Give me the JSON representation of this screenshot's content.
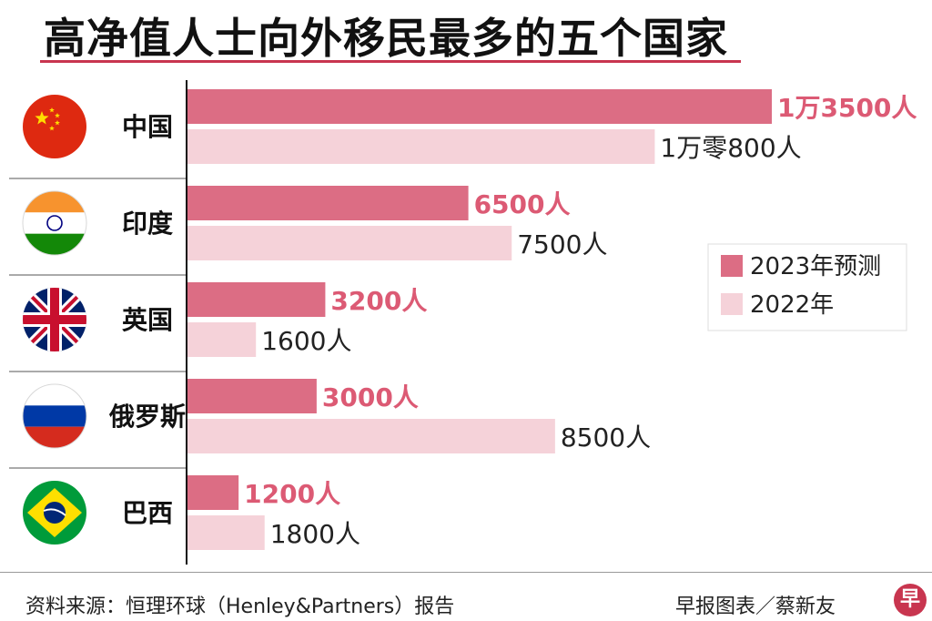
{
  "title": "高净值人士向外移民最多的五个国家",
  "footer": {
    "source": "资料来源：恒理环球（Henley&Partners）报告",
    "credit": "早报图表／蔡新友",
    "logo_text": "早"
  },
  "colors": {
    "series_2023": "#dc6d84",
    "series_2022": "#f5d2d9",
    "label_2023": "#dc5a74",
    "label_2022": "#222222",
    "accent": "#c8354f"
  },
  "chart_data": {
    "type": "bar",
    "orientation": "horizontal",
    "title": "高净值人士向外移民最多的五个国家",
    "categories": [
      "中国",
      "印度",
      "英国",
      "俄罗斯",
      "巴西"
    ],
    "flag_icons": [
      "china-flag-icon",
      "india-flag-icon",
      "uk-flag-icon",
      "russia-flag-icon",
      "brazil-flag-icon"
    ],
    "series": [
      {
        "name": "2023年预测",
        "values": [
          13500,
          6500,
          3200,
          3000,
          1200
        ],
        "labels": [
          "1万3500人",
          "6500人",
          "3200人",
          "3000人",
          "1200人"
        ]
      },
      {
        "name": "2022年",
        "values": [
          10800,
          7500,
          1600,
          8500,
          1800
        ],
        "labels": [
          "1万零800人",
          "7500人",
          "1600人",
          "8500人",
          "1800人"
        ]
      }
    ],
    "xlim": [
      0,
      13500
    ],
    "grid": false,
    "legend_position": "right"
  }
}
